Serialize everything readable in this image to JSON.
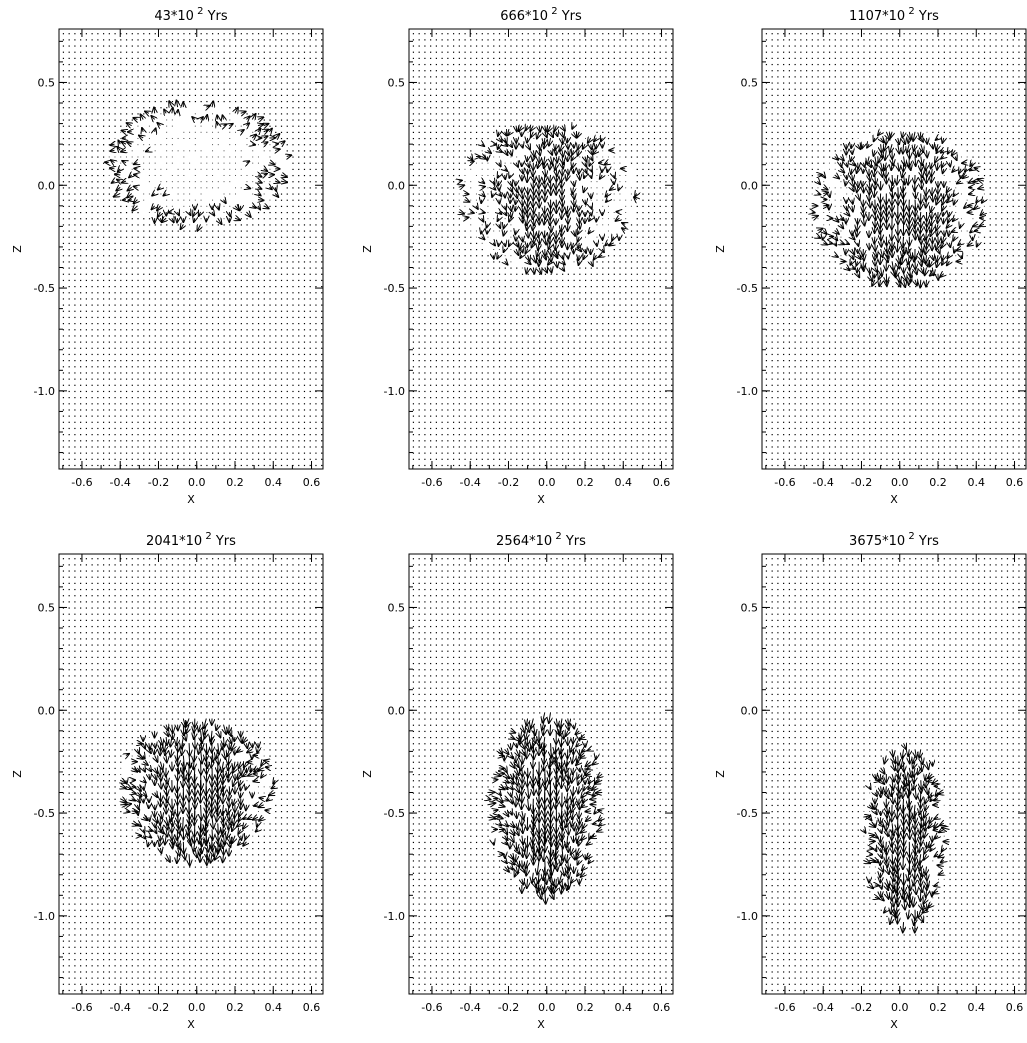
{
  "chart_data": [
    {
      "type": "quiver",
      "title_value": "43",
      "title_base": "*10",
      "title_exp": "2",
      "title_unit": "Yrs",
      "xlabel": "X",
      "ylabel": "Z",
      "xlim": [
        -0.72,
        0.66
      ],
      "ylim": [
        -1.38,
        0.76
      ],
      "xticks": [
        "-0.6",
        "-0.4",
        "-0.2",
        "0.0",
        "0.2",
        "0.4",
        "0.6"
      ],
      "yticks": [
        "-1.0",
        "-0.5",
        "0.0",
        "0.5"
      ],
      "flow_region": {
        "cx": 0.0,
        "cz": 0.1,
        "rx": 0.46,
        "rz": 0.28
      },
      "jet": {
        "strength": 0.0,
        "direction": "up"
      }
    },
    {
      "type": "quiver",
      "title_value": "666",
      "title_base": "*10",
      "title_exp": "2",
      "title_unit": "Yrs",
      "xlabel": "X",
      "ylabel": "Z",
      "xlim": [
        -0.72,
        0.66
      ],
      "ylim": [
        -1.38,
        0.76
      ],
      "xticks": [
        "-0.6",
        "-0.4",
        "-0.2",
        "0.0",
        "0.2",
        "0.4",
        "0.6"
      ],
      "yticks": [
        "-1.0",
        "-0.5",
        "0.0",
        "0.5"
      ],
      "flow_region": {
        "cx": 0.0,
        "cz": -0.05,
        "rx": 0.45,
        "rz": 0.35
      },
      "jet": {
        "strength": 0.04,
        "direction": "down"
      }
    },
    {
      "type": "quiver",
      "title_value": "1107",
      "title_base": "*10",
      "title_exp": "2",
      "title_unit": "Yrs",
      "xlabel": "X",
      "ylabel": "Z",
      "xlim": [
        -0.72,
        0.66
      ],
      "ylim": [
        -1.38,
        0.76
      ],
      "xticks": [
        "-0.6",
        "-0.4",
        "-0.2",
        "0.0",
        "0.2",
        "0.4",
        "0.6"
      ],
      "yticks": [
        "-1.0",
        "-0.5",
        "0.0",
        "0.5"
      ],
      "flow_region": {
        "cx": 0.0,
        "cz": -0.1,
        "rx": 0.45,
        "rz": 0.36
      },
      "jet": {
        "strength": 0.06,
        "direction": "down"
      }
    },
    {
      "type": "quiver",
      "title_value": "2041",
      "title_base": "*10",
      "title_exp": "2",
      "title_unit": "Yrs",
      "xlabel": "X",
      "ylabel": "Z",
      "xlim": [
        -0.72,
        0.66
      ],
      "ylim": [
        -1.38,
        0.76
      ],
      "xticks": [
        "-0.6",
        "-0.4",
        "-0.2",
        "0.0",
        "0.2",
        "0.4",
        "0.6"
      ],
      "yticks": [
        "-1.0",
        "-0.5",
        "0.0",
        "0.5"
      ],
      "flow_region": {
        "cx": 0.0,
        "cz": -0.38,
        "rx": 0.4,
        "rz": 0.33
      },
      "jet": {
        "strength": 0.08,
        "direction": "down"
      }
    },
    {
      "type": "quiver",
      "title_value": "2564",
      "title_base": "*10",
      "title_exp": "2",
      "title_unit": "Yrs",
      "xlabel": "X",
      "ylabel": "Z",
      "xlim": [
        -0.72,
        0.66
      ],
      "ylim": [
        -1.38,
        0.76
      ],
      "xticks": [
        "-0.6",
        "-0.4",
        "-0.2",
        "0.0",
        "0.2",
        "0.4",
        "0.6"
      ],
      "yticks": [
        "-1.0",
        "-0.5",
        "0.0",
        "0.5"
      ],
      "flow_region": {
        "cx": 0.0,
        "cz": -0.45,
        "rx": 0.3,
        "rz": 0.42
      },
      "jet": {
        "strength": 0.09,
        "direction": "down"
      }
    },
    {
      "type": "quiver",
      "title_value": "3675",
      "title_base": "*10",
      "title_exp": "2",
      "title_unit": "Yrs",
      "xlabel": "X",
      "ylabel": "Z",
      "xlim": [
        -0.72,
        0.66
      ],
      "ylim": [
        -1.38,
        0.76
      ],
      "xticks": [
        "-0.6",
        "-0.4",
        "-0.2",
        "0.0",
        "0.2",
        "0.4",
        "0.6"
      ],
      "yticks": [
        "-1.0",
        "-0.5",
        "0.0",
        "0.5"
      ],
      "flow_region": {
        "cx": 0.03,
        "cz": -0.6,
        "rx": 0.22,
        "rz": 0.42
      },
      "jet": {
        "strength": 0.08,
        "direction": "down"
      }
    }
  ]
}
